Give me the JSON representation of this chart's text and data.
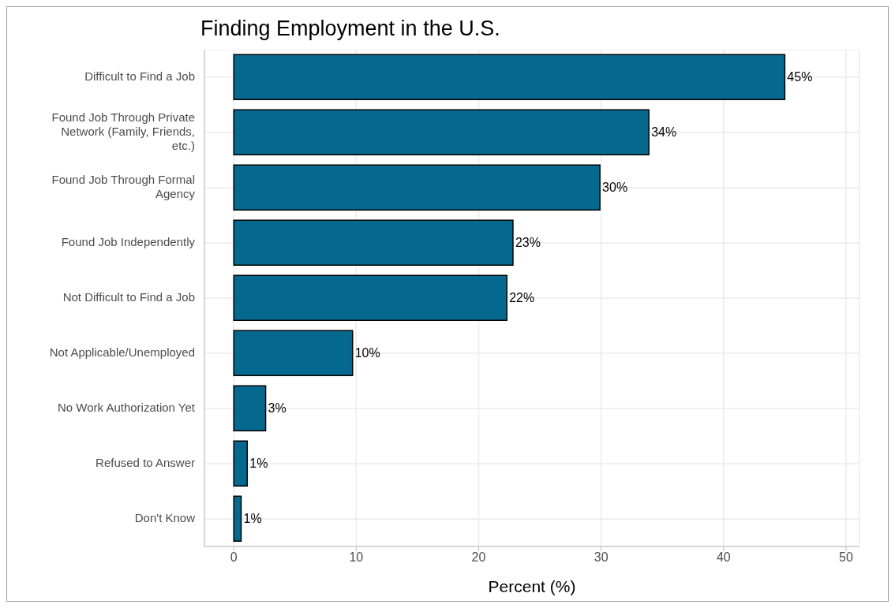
{
  "chart_data": {
    "type": "bar",
    "orientation": "horizontal",
    "title": "Finding Employment in the U.S.",
    "xlabel": "Percent (%)",
    "categories": [
      "Difficult to Find a Job",
      "Found Job Through Private Network (Family, Friends, etc.)",
      "Found Job Through Formal Agency",
      "Found Job Independently",
      "Not Difficult to Find a Job",
      "Not Applicable/Unemployed",
      "No Work Authorization Yet",
      "Refused to Answer",
      "Don't Know"
    ],
    "values": [
      45.0,
      33.9,
      29.9,
      22.8,
      22.3,
      9.7,
      2.6,
      1.1,
      0.6
    ],
    "value_labels": [
      "45%",
      "34%",
      "30%",
      "23%",
      "22%",
      "10%",
      "3%",
      "1%",
      "1%"
    ],
    "color": "#05698f",
    "xlim": [
      -2.4,
      51.1
    ],
    "xticks": [
      0,
      10,
      20,
      30,
      40,
      50
    ],
    "grid": true
  }
}
